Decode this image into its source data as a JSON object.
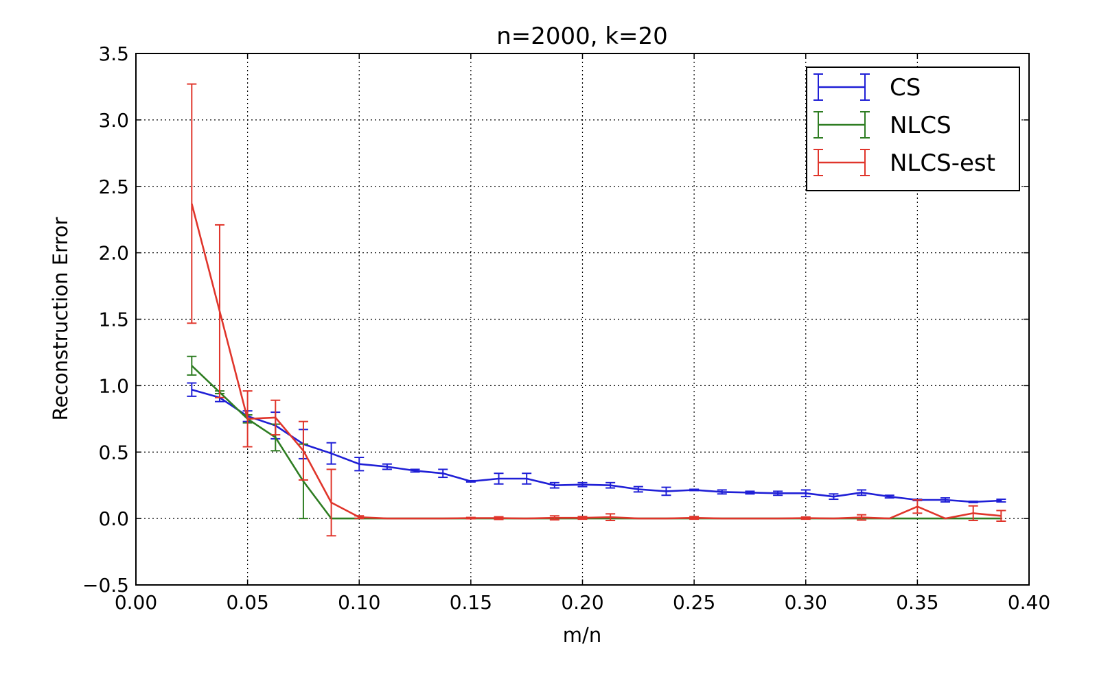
{
  "chart_data": {
    "type": "line",
    "title": "n=2000, k=20",
    "xlabel": "m/n",
    "ylabel": "Reconstruction Error",
    "xlim": [
      0.0,
      0.4
    ],
    "ylim": [
      -0.5,
      3.5
    ],
    "grid": true,
    "legend_position": "top-right",
    "xticks": [
      0.0,
      0.05,
      0.1,
      0.15,
      0.2,
      0.25,
      0.3,
      0.35,
      0.4
    ],
    "xtick_labels": [
      "0.00",
      "0.05",
      "0.10",
      "0.15",
      "0.20",
      "0.25",
      "0.30",
      "0.35",
      "0.40"
    ],
    "yticks": [
      -0.5,
      0.0,
      0.5,
      1.0,
      1.5,
      2.0,
      2.5,
      3.0,
      3.5
    ],
    "ytick_labels": [
      "−0.5",
      "0.0",
      "0.5",
      "1.0",
      "1.5",
      "2.0",
      "2.5",
      "3.0",
      "3.5"
    ],
    "series": [
      {
        "name": "CS",
        "color": "#1f1fd6",
        "x": [
          0.025,
          0.0375,
          0.05,
          0.0625,
          0.075,
          0.0875,
          0.1,
          0.1125,
          0.125,
          0.1375,
          0.15,
          0.1625,
          0.175,
          0.1875,
          0.2,
          0.2125,
          0.225,
          0.2375,
          0.25,
          0.2625,
          0.275,
          0.2875,
          0.3,
          0.3125,
          0.325,
          0.3375,
          0.35,
          0.3625,
          0.375,
          0.3875
        ],
        "y": [
          0.97,
          0.91,
          0.77,
          0.7,
          0.56,
          0.49,
          0.41,
          0.39,
          0.36,
          0.34,
          0.28,
          0.3,
          0.3,
          0.25,
          0.255,
          0.25,
          0.22,
          0.205,
          0.215,
          0.2,
          0.195,
          0.19,
          0.19,
          0.165,
          0.195,
          0.165,
          0.14,
          0.14,
          0.125,
          0.135
        ],
        "err": [
          0.05,
          0.03,
          0.04,
          0.1,
          0.11,
          0.08,
          0.05,
          0.02,
          0.01,
          0.03,
          0.005,
          0.04,
          0.04,
          0.02,
          0.015,
          0.02,
          0.02,
          0.03,
          0.005,
          0.015,
          0.01,
          0.015,
          0.025,
          0.02,
          0.02,
          0.01,
          0.005,
          0.015,
          0.005,
          0.01
        ]
      },
      {
        "name": "NLCS",
        "color": "#2e7d22",
        "x": [
          0.025,
          0.0375,
          0.05,
          0.0625,
          0.075,
          0.0875,
          0.1,
          0.1125,
          0.125,
          0.1375,
          0.15,
          0.1625,
          0.175,
          0.1875,
          0.2,
          0.2125,
          0.225,
          0.2375,
          0.25,
          0.2625,
          0.275,
          0.2875,
          0.3,
          0.3125,
          0.325,
          0.3375,
          0.35,
          0.3625,
          0.375,
          0.3875
        ],
        "y": [
          1.15,
          0.95,
          0.75,
          0.61,
          0.28,
          0.0,
          0.0,
          0.0,
          0.0,
          0.0,
          0.0,
          0.0,
          0.0,
          0.0,
          0.0,
          0.0,
          0.0,
          0.0,
          0.0,
          0.0,
          0.0,
          0.0,
          0.0,
          0.0,
          0.0,
          0.0,
          0.0,
          0.0,
          0.0,
          0.0
        ],
        "err": [
          0.07,
          0.01,
          0.03,
          0.1,
          0.28,
          0.0,
          0.0,
          0.0,
          0.0,
          0.0,
          0.0,
          0.0,
          0.0,
          0.0,
          0.0,
          0.0,
          0.0,
          0.0,
          0.0,
          0.0,
          0.0,
          0.0,
          0.0,
          0.0,
          0.0,
          0.0,
          0.0,
          0.0,
          0.0,
          0.0
        ]
      },
      {
        "name": "NLCS-est",
        "color": "#e0352b",
        "x": [
          0.025,
          0.0375,
          0.05,
          0.0625,
          0.075,
          0.0875,
          0.1,
          0.1125,
          0.125,
          0.1375,
          0.15,
          0.1625,
          0.175,
          0.1875,
          0.2,
          0.2125,
          0.225,
          0.2375,
          0.25,
          0.2625,
          0.275,
          0.2875,
          0.3,
          0.3125,
          0.325,
          0.3375,
          0.35,
          0.3625,
          0.375,
          0.3875
        ],
        "y": [
          2.37,
          1.56,
          0.75,
          0.76,
          0.51,
          0.12,
          0.01,
          0.0,
          0.0,
          0.0,
          0.003,
          0.003,
          0.0,
          0.005,
          0.005,
          0.01,
          0.0,
          0.0,
          0.005,
          0.0,
          0.0,
          0.0,
          0.003,
          0.0,
          0.008,
          0.0,
          0.09,
          0.0,
          0.04,
          0.02
        ],
        "err": [
          0.9,
          0.65,
          0.21,
          0.13,
          0.22,
          0.25,
          0.01,
          0.0,
          0.0,
          0.0,
          0.005,
          0.01,
          0.0,
          0.015,
          0.01,
          0.025,
          0.0,
          0.0,
          0.01,
          0.0,
          0.0,
          0.0,
          0.008,
          0.0,
          0.02,
          0.0,
          0.05,
          0.0,
          0.055,
          0.04
        ]
      }
    ]
  }
}
